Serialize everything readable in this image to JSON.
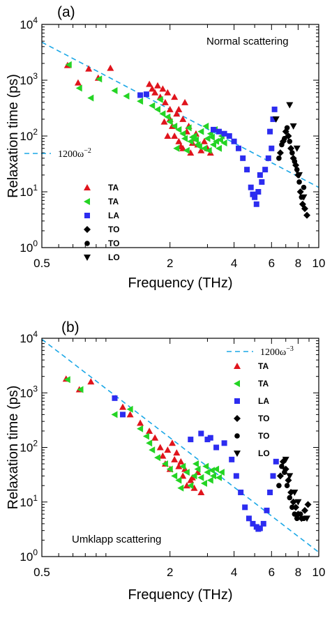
{
  "chart_data": [
    {
      "panel_label": "(a)",
      "type": "scatter",
      "scale": "log-log",
      "annotation": "Normal scattering",
      "xlabel": "Frequency (THz)",
      "ylabel": "Relaxation time (ps)",
      "xlim": [
        0.5,
        10
      ],
      "ylim": [
        1,
        10000
      ],
      "x_ticks": [
        "0.5",
        "2",
        "4",
        "6",
        "8",
        "10"
      ],
      "y_ticks": [
        "10^0",
        "10^1",
        "10^2",
        "10^3",
        "10^4"
      ],
      "legend_position": "left-middle",
      "fit_line": {
        "label": "1200ω^-2",
        "label_base": "1200ω",
        "label_exp": "−2",
        "coef": 1200,
        "exponent": -2,
        "color": "#1aa7e6"
      },
      "series": [
        {
          "name": "TA",
          "marker": "triangle-up",
          "color": "#e0141c",
          "points": [
            [
              0.66,
              1850
            ],
            [
              0.74,
              900
            ],
            [
              0.83,
              1600
            ],
            [
              0.92,
              1100
            ],
            [
              1.05,
              1650
            ],
            [
              1.6,
              850
            ],
            [
              1.65,
              700
            ],
            [
              1.7,
              600
            ],
            [
              1.75,
              800
            ],
            [
              1.8,
              500
            ],
            [
              1.85,
              700
            ],
            [
              1.9,
              400
            ],
            [
              1.95,
              600
            ],
            [
              2.0,
              300
            ],
            [
              2.0,
              200
            ],
            [
              2.05,
              150
            ],
            [
              2.1,
              500
            ],
            [
              2.1,
              100
            ],
            [
              2.2,
              80
            ],
            [
              2.2,
              300
            ],
            [
              2.3,
              60
            ],
            [
              2.3,
              200
            ],
            [
              2.4,
              120
            ],
            [
              2.5,
              50
            ],
            [
              2.6,
              90
            ],
            [
              2.7,
              70
            ],
            [
              2.8,
              55
            ],
            [
              3.0,
              60
            ],
            [
              1.95,
              100
            ],
            [
              2.15,
              250
            ],
            [
              2.35,
              400
            ],
            [
              2.45,
              150
            ],
            [
              2.55,
              75
            ],
            [
              2.65,
              110
            ],
            [
              2.9,
              80
            ],
            [
              3.1,
              50
            ],
            [
              2.25,
              65
            ],
            [
              1.88,
              180
            ]
          ]
        },
        {
          "name": "TA",
          "marker": "triangle-left",
          "color": "#24d424",
          "points": [
            [
              0.67,
              1900
            ],
            [
              0.75,
              720
            ],
            [
              0.85,
              480
            ],
            [
              0.93,
              1050
            ],
            [
              1.1,
              650
            ],
            [
              1.25,
              520
            ],
            [
              1.45,
              420
            ],
            [
              1.65,
              350
            ],
            [
              1.75,
              300
            ],
            [
              1.85,
              250
            ],
            [
              1.95,
              220
            ],
            [
              2.0,
              180
            ],
            [
              2.1,
              150
            ],
            [
              2.2,
              130
            ],
            [
              2.3,
              110
            ],
            [
              2.35,
              90
            ],
            [
              2.5,
              80
            ],
            [
              2.6,
              100
            ],
            [
              2.7,
              70
            ],
            [
              2.8,
              120
            ],
            [
              2.9,
              60
            ],
            [
              3.0,
              90
            ],
            [
              3.1,
              110
            ],
            [
              3.2,
              70
            ],
            [
              3.3,
              80
            ],
            [
              3.4,
              60
            ],
            [
              3.5,
              100
            ],
            [
              3.6,
              75
            ],
            [
              2.45,
              140
            ],
            [
              2.55,
              95
            ],
            [
              2.65,
              85
            ],
            [
              2.75,
              65
            ],
            [
              2.95,
              150
            ],
            [
              3.05,
              55
            ],
            [
              3.15,
              95
            ],
            [
              3.25,
              130
            ],
            [
              3.45,
              85
            ],
            [
              2.15,
              60
            ],
            [
              2.4,
              55
            ],
            [
              1.8,
              450
            ]
          ]
        },
        {
          "name": "LA",
          "marker": "square",
          "color": "#2c2cf0",
          "points": [
            [
              1.45,
              540
            ],
            [
              1.55,
              560
            ],
            [
              3.2,
              130
            ],
            [
              3.4,
              120
            ],
            [
              3.6,
              110
            ],
            [
              3.8,
              100
            ],
            [
              4.0,
              80
            ],
            [
              4.2,
              60
            ],
            [
              4.4,
              40
            ],
            [
              4.6,
              25
            ],
            [
              4.8,
              12
            ],
            [
              5.0,
              8
            ],
            [
              5.2,
              10
            ],
            [
              5.4,
              15
            ],
            [
              5.6,
              25
            ],
            [
              5.8,
              40
            ],
            [
              6.0,
              60
            ],
            [
              6.2,
              300
            ],
            [
              5.3,
              20
            ],
            [
              5.1,
              6
            ],
            [
              4.9,
              9
            ],
            [
              5.9,
              120
            ],
            [
              6.1,
              200
            ]
          ]
        },
        {
          "name": "TO",
          "marker": "diamond",
          "color": "#000000",
          "points": [
            [
              6.6,
              50
            ],
            [
              6.8,
              80
            ],
            [
              7.0,
              120
            ],
            [
              7.2,
              100
            ],
            [
              7.4,
              60
            ],
            [
              7.6,
              40
            ],
            [
              7.8,
              30
            ],
            [
              8.0,
              20
            ],
            [
              8.2,
              10
            ],
            [
              8.4,
              6
            ],
            [
              8.8,
              3.8
            ],
            [
              8.6,
              5
            ]
          ]
        },
        {
          "name": "TO",
          "marker": "circle",
          "color": "#000000",
          "points": [
            [
              6.5,
              40
            ],
            [
              6.7,
              70
            ],
            [
              6.9,
              90
            ],
            [
              7.1,
              140
            ],
            [
              7.3,
              80
            ],
            [
              7.5,
              50
            ],
            [
              7.7,
              35
            ],
            [
              7.9,
              25
            ],
            [
              8.1,
              15
            ],
            [
              8.3,
              8
            ],
            [
              8.5,
              12
            ]
          ]
        },
        {
          "name": "LO",
          "marker": "triangle-down",
          "color": "#000000",
          "points": [
            [
              6.3,
              200
            ],
            [
              7.3,
              360
            ],
            [
              7.6,
              150
            ],
            [
              7.9,
              60
            ],
            [
              8.1,
              20
            ],
            [
              8.5,
              8
            ]
          ]
        }
      ]
    },
    {
      "panel_label": "(b)",
      "type": "scatter",
      "scale": "log-log",
      "annotation": "Umklapp scattering",
      "xlabel": "Frequency (THz)",
      "ylabel": "Relaxation time (ps)",
      "xlim": [
        0.5,
        10
      ],
      "ylim": [
        1,
        10000
      ],
      "x_ticks": [
        "0.5",
        "2",
        "4",
        "6",
        "8",
        "10"
      ],
      "y_ticks": [
        "10^0",
        "10^1",
        "10^2",
        "10^3",
        "10^4"
      ],
      "legend_position": "top-right",
      "fit_line": {
        "label": "1200ω^-3",
        "label_base": "1200ω",
        "label_exp": "−3",
        "coef": 1200,
        "exponent": -3,
        "color": "#1aa7e6"
      },
      "series": [
        {
          "name": "TA",
          "marker": "triangle-up",
          "color": "#e0141c",
          "points": [
            [
              0.65,
              1800
            ],
            [
              0.75,
              1150
            ],
            [
              0.85,
              1600
            ],
            [
              1.2,
              550
            ],
            [
              1.3,
              400
            ],
            [
              1.45,
              280
            ],
            [
              1.6,
              200
            ],
            [
              1.7,
              150
            ],
            [
              1.8,
              100
            ],
            [
              1.85,
              70
            ],
            [
              1.9,
              50
            ],
            [
              2.0,
              40
            ],
            [
              2.1,
              60
            ],
            [
              2.2,
              45
            ],
            [
              2.3,
              30
            ],
            [
              2.4,
              20
            ],
            [
              2.5,
              25
            ],
            [
              2.6,
              18
            ],
            [
              2.7,
              35
            ],
            [
              2.8,
              15
            ],
            [
              2.05,
              120
            ],
            [
              2.15,
              80
            ],
            [
              2.25,
              55
            ],
            [
              2.35,
              40
            ],
            [
              2.55,
              28
            ],
            [
              1.95,
              90
            ]
          ]
        },
        {
          "name": "TA",
          "marker": "triangle-left",
          "color": "#24d424",
          "points": [
            [
              0.66,
              1750
            ],
            [
              0.76,
              1150
            ],
            [
              1.1,
              400
            ],
            [
              1.3,
              500
            ],
            [
              1.45,
              220
            ],
            [
              1.55,
              160
            ],
            [
              1.65,
              90
            ],
            [
              1.75,
              65
            ],
            [
              1.9,
              50
            ],
            [
              2.0,
              40
            ],
            [
              2.1,
              30
            ],
            [
              2.2,
              25
            ],
            [
              2.3,
              45
            ],
            [
              2.4,
              35
            ],
            [
              2.5,
              20
            ],
            [
              2.6,
              30
            ],
            [
              2.7,
              40
            ],
            [
              2.8,
              28
            ],
            [
              2.9,
              22
            ],
            [
              3.0,
              35
            ],
            [
              3.1,
              25
            ],
            [
              3.2,
              30
            ],
            [
              3.3,
              40
            ],
            [
              3.4,
              28
            ],
            [
              3.5,
              35
            ],
            [
              2.65,
              50
            ],
            [
              2.95,
              45
            ],
            [
              3.15,
              38
            ],
            [
              1.6,
              120
            ],
            [
              2.25,
              18
            ]
          ]
        },
        {
          "name": "LA",
          "marker": "square",
          "color": "#2c2cf0",
          "points": [
            [
              1.1,
              800
            ],
            [
              1.2,
              400
            ],
            [
              2.5,
              140
            ],
            [
              2.8,
              180
            ],
            [
              3.1,
              150
            ],
            [
              3.3,
              100
            ],
            [
              3.6,
              120
            ],
            [
              3.9,
              60
            ],
            [
              4.1,
              30
            ],
            [
              4.3,
              15
            ],
            [
              4.5,
              8
            ],
            [
              4.7,
              5
            ],
            [
              4.9,
              4
            ],
            [
              5.1,
              3.5
            ],
            [
              5.3,
              3.3
            ],
            [
              5.5,
              4
            ],
            [
              5.7,
              7
            ],
            [
              5.9,
              15
            ],
            [
              6.1,
              30
            ],
            [
              6.3,
              55
            ],
            [
              3.0,
              140
            ],
            [
              5.2,
              3.2
            ]
          ]
        },
        {
          "name": "TO",
          "marker": "diamond",
          "color": "#000000",
          "points": [
            [
              6.6,
              30
            ],
            [
              6.8,
              55
            ],
            [
              7.0,
              40
            ],
            [
              7.2,
              25
            ],
            [
              7.4,
              15
            ],
            [
              7.6,
              10
            ],
            [
              7.8,
              8
            ],
            [
              8.0,
              6
            ],
            [
              8.3,
              5
            ],
            [
              8.6,
              7
            ],
            [
              8.9,
              9
            ]
          ]
        },
        {
          "name": "TO",
          "marker": "circle",
          "color": "#000000",
          "points": [
            [
              6.5,
              20
            ],
            [
              6.7,
              45
            ],
            [
              6.9,
              35
            ],
            [
              7.1,
              20
            ],
            [
              7.3,
              12
            ],
            [
              7.5,
              8
            ],
            [
              7.7,
              6
            ],
            [
              7.9,
              5
            ],
            [
              8.2,
              6
            ],
            [
              8.5,
              5
            ]
          ]
        },
        {
          "name": "LO",
          "marker": "triangle-down",
          "color": "#000000",
          "points": [
            [
              7.0,
              60
            ],
            [
              7.3,
              30
            ],
            [
              7.7,
              15
            ],
            [
              8.0,
              10
            ],
            [
              8.8,
              5
            ]
          ]
        }
      ]
    }
  ]
}
